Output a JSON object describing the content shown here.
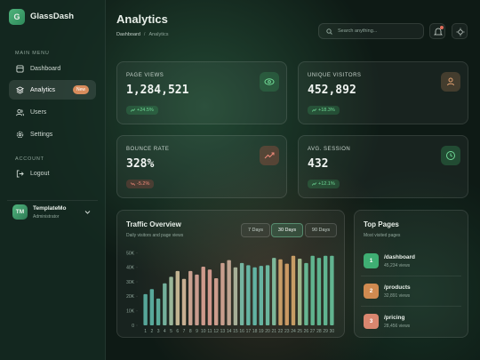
{
  "sidebar": {
    "logo_letter": "G",
    "brand": "GlassDash",
    "sections": [
      {
        "title": "MAIN MENU",
        "items": [
          {
            "label": "Dashboard"
          },
          {
            "label": "Analytics",
            "badge": "New"
          },
          {
            "label": "Users"
          },
          {
            "label": "Settings"
          }
        ]
      },
      {
        "title": "ACCOUNT",
        "items": [
          {
            "label": "Logout"
          }
        ]
      }
    ],
    "user": {
      "initials": "TM",
      "name": "TemplateMo",
      "role": "Administrator"
    }
  },
  "header": {
    "title": "Analytics",
    "breadcrumb": [
      "Dashboard",
      "Analytics"
    ],
    "breadcrumb_separator": "/",
    "search_placeholder": "Search anything..."
  },
  "stats": [
    {
      "label": "PAGE VIEWS",
      "value": "1,284,521",
      "change": "+24.5%",
      "trend": "up"
    },
    {
      "label": "UNIQUE VISITORS",
      "value": "452,892",
      "change": "+18.3%",
      "trend": "up"
    },
    {
      "label": "BOUNCE RATE",
      "value": "328%",
      "change": "-5.2%",
      "trend": "down"
    },
    {
      "label": "AVG. SESSION",
      "value": "432",
      "change": "+12.1%",
      "trend": "up"
    }
  ],
  "chart_data": {
    "type": "bar",
    "title": "Traffic Overview",
    "subtitle": "Daily visitors and page views",
    "ranges": [
      "7 Days",
      "30 Days",
      "90 Days"
    ],
    "active_range": 1,
    "categories": [
      "1",
      "2",
      "3",
      "4",
      "5",
      "6",
      "7",
      "8",
      "9",
      "10",
      "11",
      "12",
      "13",
      "14",
      "15",
      "16",
      "17",
      "18",
      "19",
      "20",
      "21",
      "22",
      "23",
      "24",
      "25",
      "26",
      "27",
      "28",
      "29",
      "30"
    ],
    "values": [
      21500,
      25000,
      18500,
      29000,
      33500,
      37500,
      32000,
      37500,
      35000,
      40500,
      38500,
      32500,
      43000,
      45000,
      40000,
      43000,
      41500,
      40000,
      41000,
      41500,
      46500,
      45500,
      42500,
      48000,
      46000,
      43000,
      48000,
      46500,
      48000,
      48000
    ],
    "colors": [
      "#5db5a6",
      "#5fb8a8",
      "#62b9a6",
      "#7cbfa8",
      "#a9c6a6",
      "#d4c39f",
      "#d9bd9d",
      "#dcae9c",
      "#dba99b",
      "#e0a597",
      "#e2a397",
      "#dea898",
      "#d9aa98",
      "#cfb09c",
      "#b4bca3",
      "#7cc3ae",
      "#6cc2b0",
      "#67c1b0",
      "#6bc2ae",
      "#72c4ab",
      "#86c7a6",
      "#d7a86e",
      "#dba56a",
      "#d6a86c",
      "#a9c596",
      "#6ec59f",
      "#66c29a",
      "#64c199",
      "#66c29b",
      "#68c39c"
    ],
    "ylim": [
      0,
      55000
    ],
    "yticks": [
      0,
      {
        "value": 10000,
        "label": "10K"
      },
      {
        "value": 20000,
        "label": "20K"
      },
      {
        "value": 30000,
        "label": "30K"
      },
      {
        "value": 40000,
        "label": "40K"
      },
      {
        "value": 50000,
        "label": "50K"
      }
    ]
  },
  "top_pages": {
    "title": "Top Pages",
    "subtitle": "Most visited pages",
    "items": [
      {
        "rank": "1",
        "path": "/dashboard",
        "views": "45,234 views"
      },
      {
        "rank": "2",
        "path": "/products",
        "views": "32,891 views"
      },
      {
        "rank": "3",
        "path": "/pricing",
        "views": "28,456 views"
      }
    ]
  }
}
